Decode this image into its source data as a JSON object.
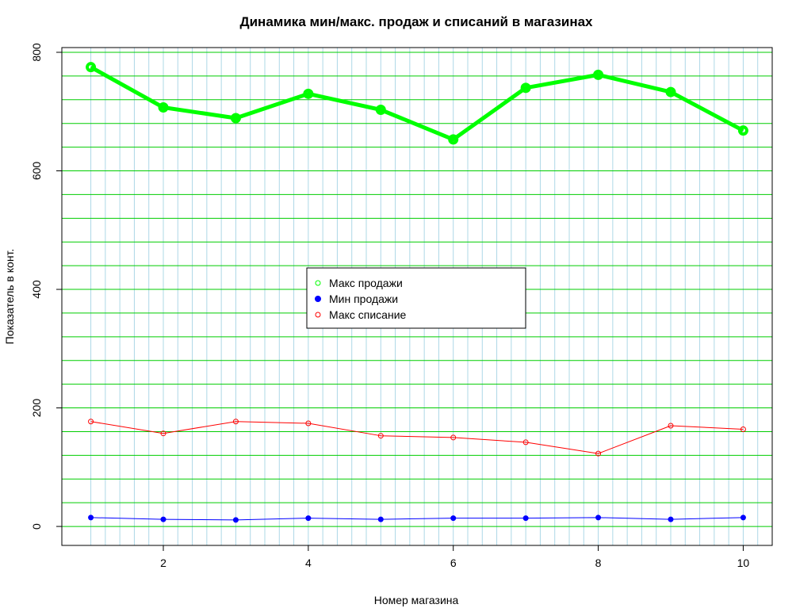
{
  "chart_data": {
    "type": "line",
    "title": "Динамика мин/макс. продаж и списаний в магазинах",
    "xlabel": "Номер магазина",
    "ylabel": "Показатель в конт.",
    "x": [
      1,
      2,
      3,
      4,
      5,
      6,
      7,
      8,
      9,
      10
    ],
    "xlim": [
      0.6,
      10.4
    ],
    "ylim": [
      -32,
      808
    ],
    "x_ticks": [
      2,
      4,
      6,
      8,
      10
    ],
    "y_ticks": [
      0,
      200,
      400,
      600,
      800
    ],
    "grid": "on",
    "legend_position": "center",
    "colors": {
      "grid_vertical": "#add8e6",
      "grid_horizontal": "#00cd00"
    },
    "series": [
      {
        "name": "Макс продажи",
        "color": "#00ff00",
        "marker": "open-circle",
        "line_width": "thick",
        "values": [
          775,
          707,
          689,
          730,
          703,
          653,
          740,
          762,
          733,
          668
        ]
      },
      {
        "name": "Мин продажи",
        "color": "#0000ff",
        "marker": "filled-circle",
        "line_width": "thin",
        "values": [
          15,
          12,
          11,
          14,
          12,
          14,
          14,
          15,
          12,
          15
        ]
      },
      {
        "name": "Макс списание",
        "color": "#ff0000",
        "marker": "open-circle",
        "line_width": "thin",
        "values": [
          177,
          157,
          177,
          174,
          153,
          150,
          142,
          123,
          170,
          164
        ]
      }
    ]
  }
}
